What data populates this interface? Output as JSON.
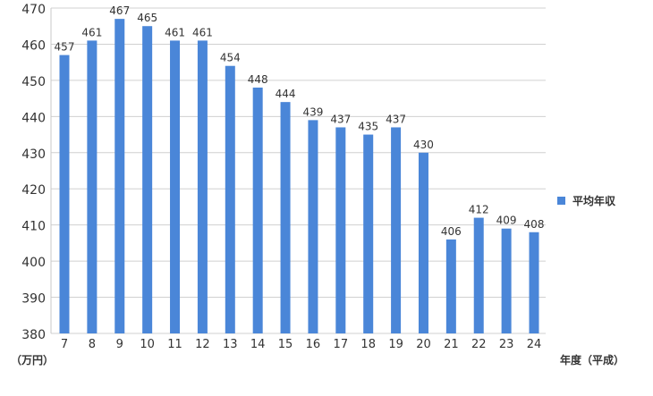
{
  "chart_data": {
    "type": "bar",
    "categories": [
      "7",
      "8",
      "9",
      "10",
      "11",
      "12",
      "13",
      "14",
      "15",
      "16",
      "17",
      "18",
      "19",
      "20",
      "21",
      "22",
      "23",
      "24"
    ],
    "series": [
      {
        "name": "平均年収",
        "values": [
          457,
          461,
          467,
          465,
          461,
          461,
          454,
          448,
          444,
          439,
          437,
          435,
          437,
          430,
          406,
          412,
          409,
          408
        ]
      }
    ],
    "ylim": [
      380,
      470
    ],
    "yticks": [
      380,
      390,
      400,
      410,
      420,
      430,
      440,
      450,
      460,
      470
    ],
    "ylabel": "（万円）",
    "xlabel": "年度（平成）",
    "grid": true,
    "data_labels": true,
    "legend": "right"
  },
  "colors": {
    "bar": "#4a86d8",
    "grid": "#d0d0d0",
    "axis": "#c8c8c8",
    "text": "#333333"
  }
}
